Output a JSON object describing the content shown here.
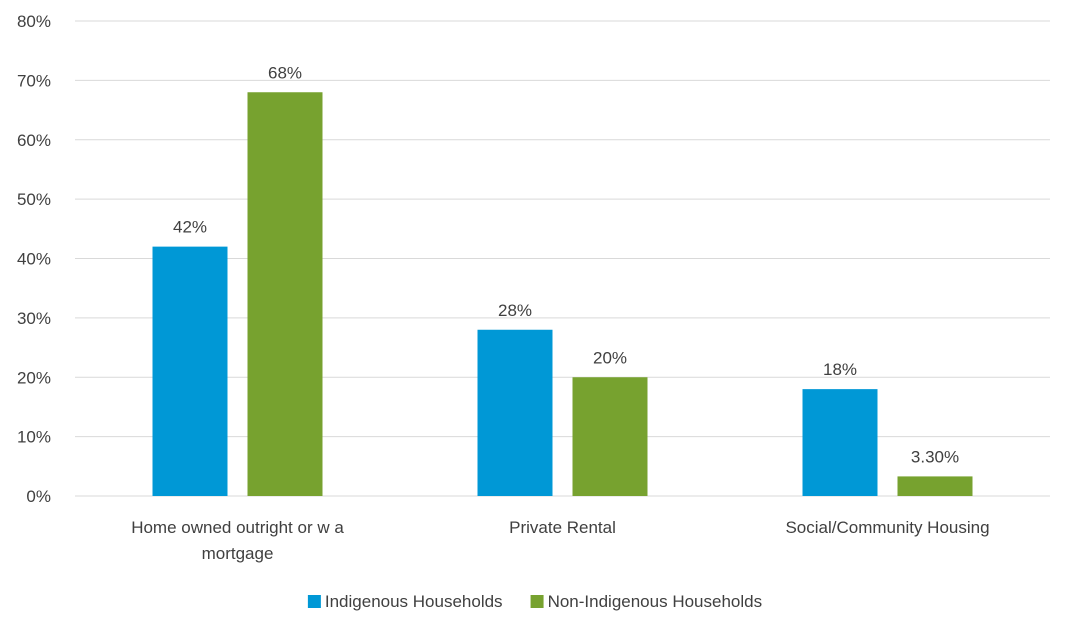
{
  "chart_data": {
    "type": "bar",
    "categories": [
      [
        "Home owned outright or w a",
        "mortgage"
      ],
      [
        "Private Rental"
      ],
      [
        "Social/Community Housing"
      ]
    ],
    "series": [
      {
        "name": "Indigenous Households",
        "color": "#0098D6",
        "values": [
          42,
          28,
          18
        ],
        "labels": [
          "42%",
          "28%",
          "18%"
        ]
      },
      {
        "name": "Non-Indigenous Households",
        "color": "#77A22F",
        "values": [
          68,
          20,
          3.3
        ],
        "labels": [
          "68%",
          "20%",
          "3.30%"
        ]
      }
    ],
    "ylim": [
      0,
      80
    ],
    "yticks": [
      0,
      10,
      20,
      30,
      40,
      50,
      60,
      70,
      80
    ],
    "ytick_labels": [
      "0%",
      "10%",
      "20%",
      "30%",
      "40%",
      "50%",
      "60%",
      "70%",
      "80%"
    ],
    "grid": true,
    "gridColor": "#D9D9D9",
    "legend_position": "bottom"
  }
}
